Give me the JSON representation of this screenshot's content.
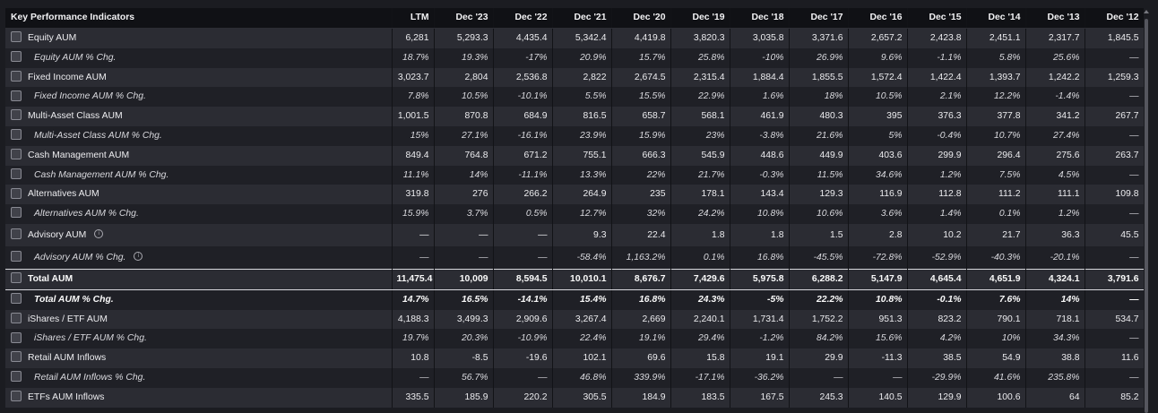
{
  "header": {
    "title": "Key Performance Indicators",
    "columns": [
      "LTM",
      "Dec '23",
      "Dec '22",
      "Dec '21",
      "Dec '20",
      "Dec '19",
      "Dec '18",
      "Dec '17",
      "Dec '16",
      "Dec '15",
      "Dec '14",
      "Dec '13",
      "Dec '12"
    ]
  },
  "rows": [
    {
      "label": "Equity AUM",
      "kind": "main",
      "values": [
        "6,281",
        "5,293.3",
        "4,435.4",
        "5,342.4",
        "4,419.8",
        "3,820.3",
        "3,035.8",
        "3,371.6",
        "2,657.2",
        "2,423.8",
        "2,451.1",
        "2,317.7",
        "1,845.5"
      ]
    },
    {
      "label": "Equity AUM % Chg.",
      "kind": "pct",
      "values": [
        "18.7%",
        "19.3%",
        "-17%",
        "20.9%",
        "15.7%",
        "25.8%",
        "-10%",
        "26.9%",
        "9.6%",
        "-1.1%",
        "5.8%",
        "25.6%",
        "—"
      ]
    },
    {
      "label": "Fixed Income AUM",
      "kind": "main",
      "values": [
        "3,023.7",
        "2,804",
        "2,536.8",
        "2,822",
        "2,674.5",
        "2,315.4",
        "1,884.4",
        "1,855.5",
        "1,572.4",
        "1,422.4",
        "1,393.7",
        "1,242.2",
        "1,259.3"
      ]
    },
    {
      "label": "Fixed Income AUM % Chg.",
      "kind": "pct",
      "values": [
        "7.8%",
        "10.5%",
        "-10.1%",
        "5.5%",
        "15.5%",
        "22.9%",
        "1.6%",
        "18%",
        "10.5%",
        "2.1%",
        "12.2%",
        "-1.4%",
        "—"
      ]
    },
    {
      "label": "Multi-Asset Class AUM",
      "kind": "main",
      "values": [
        "1,001.5",
        "870.8",
        "684.9",
        "816.5",
        "658.7",
        "568.1",
        "461.9",
        "480.3",
        "395",
        "376.3",
        "377.8",
        "341.2",
        "267.7"
      ]
    },
    {
      "label": "Multi-Asset Class AUM % Chg.",
      "kind": "pct",
      "values": [
        "15%",
        "27.1%",
        "-16.1%",
        "23.9%",
        "15.9%",
        "23%",
        "-3.8%",
        "21.6%",
        "5%",
        "-0.4%",
        "10.7%",
        "27.4%",
        "—"
      ]
    },
    {
      "label": "Cash Management AUM",
      "kind": "main",
      "values": [
        "849.4",
        "764.8",
        "671.2",
        "755.1",
        "666.3",
        "545.9",
        "448.6",
        "449.9",
        "403.6",
        "299.9",
        "296.4",
        "275.6",
        "263.7"
      ]
    },
    {
      "label": "Cash Management AUM % Chg.",
      "kind": "pct",
      "values": [
        "11.1%",
        "14%",
        "-11.1%",
        "13.3%",
        "22%",
        "21.7%",
        "-0.3%",
        "11.5%",
        "34.6%",
        "1.2%",
        "7.5%",
        "4.5%",
        "—"
      ]
    },
    {
      "label": "Alternatives AUM",
      "kind": "main",
      "values": [
        "319.8",
        "276",
        "266.2",
        "264.9",
        "235",
        "178.1",
        "143.4",
        "129.3",
        "116.9",
        "112.8",
        "111.2",
        "111.1",
        "109.8"
      ]
    },
    {
      "label": "Alternatives AUM % Chg.",
      "kind": "pct",
      "values": [
        "15.9%",
        "3.7%",
        "0.5%",
        "12.7%",
        "32%",
        "24.2%",
        "10.8%",
        "10.6%",
        "3.6%",
        "1.4%",
        "0.1%",
        "1.2%",
        "—"
      ]
    },
    {
      "label": "Advisory AUM",
      "kind": "main",
      "info": true,
      "tall": true,
      "values": [
        "—",
        "—",
        "—",
        "9.3",
        "22.4",
        "1.8",
        "1.8",
        "1.5",
        "2.8",
        "10.2",
        "21.7",
        "36.3",
        "45.5"
      ]
    },
    {
      "label": "Advisory AUM % Chg.",
      "kind": "pct",
      "info": true,
      "tall": true,
      "values": [
        "—",
        "—",
        "—",
        "-58.4%",
        "1,163.2%",
        "0.1%",
        "16.8%",
        "-45.5%",
        "-72.8%",
        "-52.9%",
        "-40.3%",
        "-20.1%",
        "—"
      ]
    },
    {
      "label": "Total AUM",
      "kind": "main",
      "total": true,
      "values": [
        "11,475.4",
        "10,009",
        "8,594.5",
        "10,010.1",
        "8,676.7",
        "7,429.6",
        "5,975.8",
        "6,288.2",
        "5,147.9",
        "4,645.4",
        "4,651.9",
        "4,324.1",
        "3,791.6"
      ]
    },
    {
      "label": "Total AUM % Chg.",
      "kind": "pct",
      "total": true,
      "values": [
        "14.7%",
        "16.5%",
        "-14.1%",
        "15.4%",
        "16.8%",
        "24.3%",
        "-5%",
        "22.2%",
        "10.8%",
        "-0.1%",
        "7.6%",
        "14%",
        "—"
      ]
    },
    {
      "label": "iShares / ETF AUM",
      "kind": "main",
      "values": [
        "4,188.3",
        "3,499.3",
        "2,909.6",
        "3,267.4",
        "2,669",
        "2,240.1",
        "1,731.4",
        "1,752.2",
        "951.3",
        "823.2",
        "790.1",
        "718.1",
        "534.7"
      ]
    },
    {
      "label": "iShares / ETF AUM % Chg.",
      "kind": "pct",
      "values": [
        "19.7%",
        "20.3%",
        "-10.9%",
        "22.4%",
        "19.1%",
        "29.4%",
        "-1.2%",
        "84.2%",
        "15.6%",
        "4.2%",
        "10%",
        "34.3%",
        "—"
      ]
    },
    {
      "label": "Retail AUM Inflows",
      "kind": "main",
      "values": [
        "10.8",
        "-8.5",
        "-19.6",
        "102.1",
        "69.6",
        "15.8",
        "19.1",
        "29.9",
        "-11.3",
        "38.5",
        "54.9",
        "38.8",
        "11.6"
      ]
    },
    {
      "label": "Retail AUM Inflows % Chg.",
      "kind": "pct",
      "values": [
        "—",
        "56.7%",
        "—",
        "46.8%",
        "339.9%",
        "-17.1%",
        "-36.2%",
        "—",
        "—",
        "-29.9%",
        "41.6%",
        "235.8%",
        "—"
      ]
    },
    {
      "label": "ETFs AUM Inflows",
      "kind": "main",
      "values": [
        "335.5",
        "185.9",
        "220.2",
        "305.5",
        "184.9",
        "183.5",
        "167.5",
        "245.3",
        "140.5",
        "129.9",
        "100.6",
        "64",
        "85.2"
      ]
    }
  ],
  "icons": {
    "checkbox": "checkbox-icon",
    "info": "info-icon"
  },
  "colors": {
    "background": "#1b1c21",
    "header": "#101115",
    "main_row": "#2b2c33",
    "pct_row": "#1f2026"
  }
}
